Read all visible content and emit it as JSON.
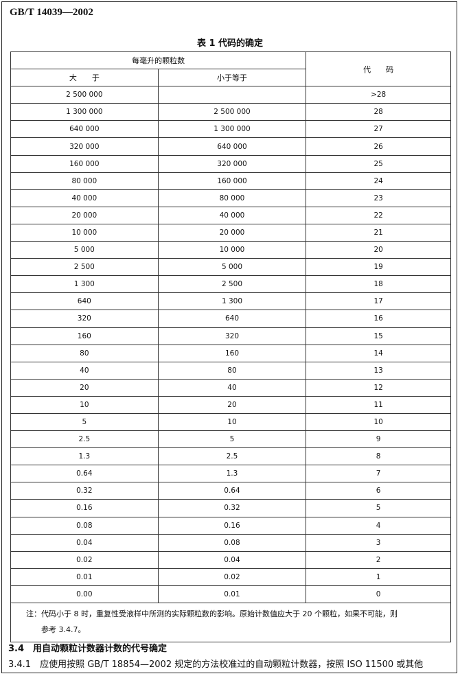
{
  "header": {
    "standard_number": "GB/T 14039—2002"
  },
  "table": {
    "title": "表 1  代码的确定",
    "group_header": "每毫升的颗粒数",
    "col_greater": "大　　于",
    "col_less_equal": "小于等于",
    "col_code": "代　　码",
    "rows": [
      [
        "2 500 000",
        "",
        ">28"
      ],
      [
        "1 300 000",
        "2 500 000",
        "28"
      ],
      [
        "640 000",
        "1 300 000",
        "27"
      ],
      [
        "320 000",
        "640 000",
        "26"
      ],
      [
        "160 000",
        "320 000",
        "25"
      ],
      [
        "80 000",
        "160 000",
        "24"
      ],
      [
        "40 000",
        "80 000",
        "23"
      ],
      [
        "20 000",
        "40 000",
        "22"
      ],
      [
        "10 000",
        "20 000",
        "21"
      ],
      [
        "5 000",
        "10 000",
        "20"
      ],
      [
        "2 500",
        "5 000",
        "19"
      ],
      [
        "1 300",
        "2 500",
        "18"
      ],
      [
        "640",
        "1 300",
        "17"
      ],
      [
        "320",
        "640",
        "16"
      ],
      [
        "160",
        "320",
        "15"
      ],
      [
        "80",
        "160",
        "14"
      ],
      [
        "40",
        "80",
        "13"
      ],
      [
        "20",
        "40",
        "12"
      ],
      [
        "10",
        "20",
        "11"
      ],
      [
        "5",
        "10",
        "10"
      ],
      [
        "2.5",
        "5",
        "9"
      ],
      [
        "1.3",
        "2.5",
        "8"
      ],
      [
        "0.64",
        "1.3",
        "7"
      ],
      [
        "0.32",
        "0.64",
        "6"
      ],
      [
        "0.16",
        "0.32",
        "5"
      ],
      [
        "0.08",
        "0.16",
        "4"
      ],
      [
        "0.04",
        "0.08",
        "3"
      ],
      [
        "0.02",
        "0.04",
        "2"
      ],
      [
        "0.01",
        "0.02",
        "1"
      ],
      [
        "0.00",
        "0.01",
        "0"
      ]
    ],
    "note_line1": "注：代码小于 8 时，重复性受液样中所测的实际颗粒数的影响。原始计数值应大于 20 个颗粒，如果不可能，则",
    "note_line2": "参考 3.4.7。"
  },
  "sections": [
    {
      "text": "3.4　用自动颗粒计数器计数的代号确定"
    },
    {
      "text": "3.4.1　应使用按照 GB/T 18854—2002 规定的方法校准过的自动颗粒计数器，按照 ISO 11500 或其他"
    }
  ]
}
